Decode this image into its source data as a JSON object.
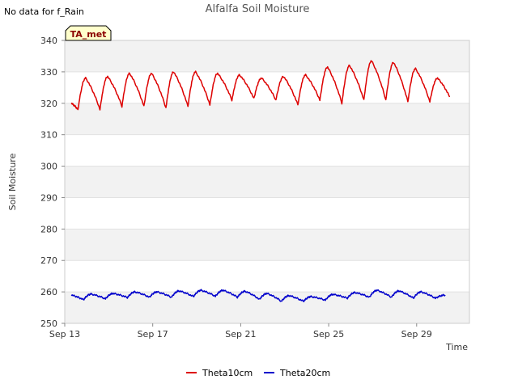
{
  "chart_data": {
    "type": "line",
    "title": "Alfalfa Soil Moisture",
    "note": "No data for f_Rain",
    "badge": "TA_met",
    "xlabel": "Time",
    "ylabel": "Soil Moisture",
    "ylim": [
      250,
      340
    ],
    "yticks": [
      250,
      260,
      270,
      280,
      290,
      300,
      310,
      320,
      330,
      340
    ],
    "xlim": [
      0,
      18.4
    ],
    "xticks": [
      {
        "value": 0,
        "label": "Sep 13"
      },
      {
        "value": 4,
        "label": "Sep 17"
      },
      {
        "value": 8,
        "label": "Sep 21"
      },
      {
        "value": 12,
        "label": "Sep 25"
      },
      {
        "value": 16,
        "label": "Sep 29"
      }
    ],
    "bands": [
      [
        250,
        260
      ],
      [
        270,
        280
      ],
      [
        290,
        300
      ],
      [
        310,
        320
      ],
      [
        330,
        340
      ]
    ],
    "series": [
      {
        "name": "Theta10cm",
        "color": "#dd0000",
        "x_start": 0.3,
        "x_end": 17.5,
        "daily_peaks": [
          {
            "day": 0.95,
            "value": 328
          },
          {
            "day": 1.95,
            "value": 328.5
          },
          {
            "day": 2.95,
            "value": 329.5
          },
          {
            "day": 3.95,
            "value": 329.5
          },
          {
            "day": 4.95,
            "value": 330
          },
          {
            "day": 5.95,
            "value": 330
          },
          {
            "day": 6.95,
            "value": 329.5
          },
          {
            "day": 7.95,
            "value": 329
          },
          {
            "day": 8.95,
            "value": 328
          },
          {
            "day": 9.95,
            "value": 328.5
          },
          {
            "day": 10.95,
            "value": 329
          },
          {
            "day": 11.95,
            "value": 331.5
          },
          {
            "day": 12.95,
            "value": 332
          },
          {
            "day": 13.95,
            "value": 333.5
          },
          {
            "day": 14.95,
            "value": 333
          },
          {
            "day": 15.95,
            "value": 331
          },
          {
            "day": 16.95,
            "value": 328
          }
        ],
        "daily_troughs": [
          {
            "day": 0.6,
            "value": 318
          },
          {
            "day": 1.6,
            "value": 318
          },
          {
            "day": 2.6,
            "value": 319
          },
          {
            "day": 3.6,
            "value": 319
          },
          {
            "day": 4.6,
            "value": 318.5
          },
          {
            "day": 5.6,
            "value": 319
          },
          {
            "day": 6.6,
            "value": 319.5
          },
          {
            "day": 7.6,
            "value": 321
          },
          {
            "day": 8.6,
            "value": 321.5
          },
          {
            "day": 9.6,
            "value": 321
          },
          {
            "day": 10.6,
            "value": 319.5
          },
          {
            "day": 11.6,
            "value": 321
          },
          {
            "day": 12.6,
            "value": 320
          },
          {
            "day": 13.6,
            "value": 321
          },
          {
            "day": 14.6,
            "value": 321
          },
          {
            "day": 15.6,
            "value": 320.5
          },
          {
            "day": 16.6,
            "value": 320.5
          },
          {
            "day": 17.5,
            "value": 322
          }
        ],
        "start_value": 320
      },
      {
        "name": "Theta20cm",
        "color": "#0000cc",
        "x_start": 0.3,
        "x_end": 17.5,
        "daily_peaks": [
          {
            "day": 1.2,
            "value": 259.3
          },
          {
            "day": 2.2,
            "value": 259.5
          },
          {
            "day": 3.2,
            "value": 260
          },
          {
            "day": 4.2,
            "value": 260
          },
          {
            "day": 5.2,
            "value": 260.3
          },
          {
            "day": 6.2,
            "value": 260.5
          },
          {
            "day": 7.2,
            "value": 260.5
          },
          {
            "day": 8.2,
            "value": 260.2
          },
          {
            "day": 9.2,
            "value": 259.5
          },
          {
            "day": 10.2,
            "value": 258.8
          },
          {
            "day": 11.2,
            "value": 258.5
          },
          {
            "day": 12.2,
            "value": 259.2
          },
          {
            "day": 13.2,
            "value": 259.8
          },
          {
            "day": 14.2,
            "value": 260.5
          },
          {
            "day": 15.2,
            "value": 260.3
          },
          {
            "day": 16.2,
            "value": 260
          },
          {
            "day": 17.3,
            "value": 259
          }
        ],
        "daily_troughs": [
          {
            "day": 0.85,
            "value": 257.5
          },
          {
            "day": 1.85,
            "value": 257.8
          },
          {
            "day": 2.85,
            "value": 258.2
          },
          {
            "day": 3.85,
            "value": 258.3
          },
          {
            "day": 4.85,
            "value": 258.3
          },
          {
            "day": 5.85,
            "value": 258.5
          },
          {
            "day": 6.85,
            "value": 258.6
          },
          {
            "day": 7.85,
            "value": 258.3
          },
          {
            "day": 8.85,
            "value": 257.6
          },
          {
            "day": 9.85,
            "value": 257
          },
          {
            "day": 10.85,
            "value": 257
          },
          {
            "day": 11.85,
            "value": 257.4
          },
          {
            "day": 12.85,
            "value": 258
          },
          {
            "day": 13.85,
            "value": 258.3
          },
          {
            "day": 14.85,
            "value": 258.3
          },
          {
            "day": 15.85,
            "value": 258
          },
          {
            "day": 16.85,
            "value": 258
          }
        ],
        "start_value": 259
      }
    ],
    "legend": [
      {
        "label": "Theta10cm",
        "color": "#dd0000"
      },
      {
        "label": "Theta20cm",
        "color": "#0000cc"
      }
    ]
  }
}
